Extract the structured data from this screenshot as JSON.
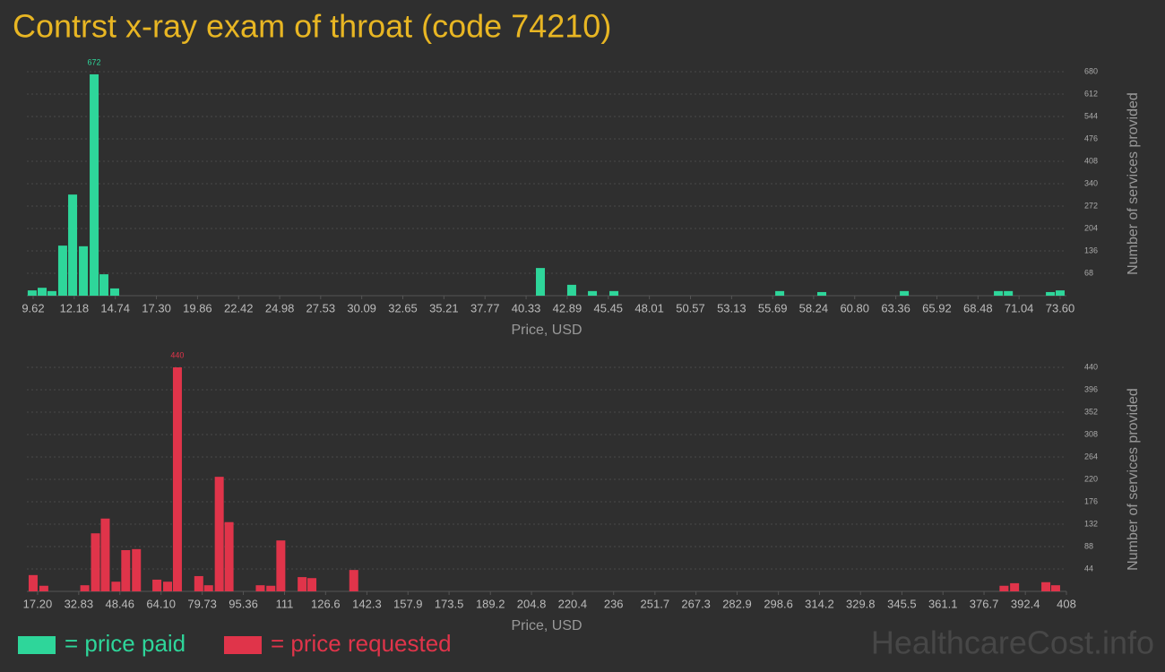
{
  "title": "Contrst x-ray exam of throat (code 74210)",
  "watermark": "HealthcareCost.info",
  "chart_data": [
    {
      "type": "bar",
      "xlabel": "Price, USD",
      "ylabel": "Number of services provided",
      "xlim": [
        9.23,
        73.99
      ],
      "ylim": [
        0,
        680
      ],
      "xticks": [
        9.62,
        12.18,
        14.74,
        {
          "value": 17.3,
          "label": "17.30"
        },
        19.86,
        22.42,
        24.98,
        27.53,
        30.09,
        32.65,
        35.21,
        37.77,
        40.33,
        42.89,
        45.45,
        48.01,
        50.57,
        53.13,
        55.69,
        58.24,
        {
          "value": 60.8,
          "label": "60.80"
        },
        63.36,
        65.92,
        68.48,
        71.04,
        {
          "value": 73.6,
          "label": "73.60"
        }
      ],
      "yticks": [
        68,
        136,
        204,
        272,
        340,
        408,
        476,
        544,
        612,
        680
      ],
      "grid": true,
      "series": [
        {
          "name": "= price paid",
          "color": "#2ed69a",
          "x": [
            9.56,
            10.18,
            10.79,
            11.46,
            12.08,
            12.75,
            13.42,
            14.03,
            14.7,
            41.22,
            43.17,
            44.46,
            45.8,
            56.13,
            58.75,
            63.89,
            69.75,
            70.37,
            72.99,
            73.6
          ],
          "values": [
            16,
            24,
            14,
            152,
            307,
            150,
            672,
            65,
            22,
            84,
            33,
            14,
            14,
            14,
            11,
            14,
            14,
            14,
            11,
            16
          ]
        }
      ]
    },
    {
      "type": "bar",
      "xlabel": "Price, USD",
      "ylabel": "Number of services provided",
      "xlim": [
        13.14,
        408
      ],
      "ylim": [
        0,
        440
      ],
      "xticks": [
        {
          "value": 17.2,
          "label": "17.20"
        },
        32.83,
        48.46,
        {
          "value": 64.1,
          "label": "64.10"
        },
        79.73,
        95.36,
        111,
        126.6,
        142.3,
        157.9,
        173.5,
        189.2,
        204.8,
        220.4,
        236,
        251.7,
        267.3,
        282.9,
        298.6,
        314.2,
        329.8,
        345.5,
        361.1,
        376.7,
        392.4,
        408
      ],
      "yticks": [
        44,
        88,
        132,
        176,
        220,
        264,
        308,
        352,
        396,
        440
      ],
      "grid": true,
      "series": [
        {
          "name": "= price requested",
          "color": "#e0344a",
          "x": [
            15.51,
            19.57,
            35.13,
            39.19,
            42.91,
            46.97,
            50.69,
            54.75,
            62.53,
            66.59,
            70.31,
            78.43,
            82.15,
            86.21,
            89.93,
            101.8,
            105.8,
            109.6,
            117.7,
            121.4,
            137.3,
            384.3,
            388.3,
            400.2,
            403.9
          ],
          "values": [
            32,
            11,
            12,
            114,
            143,
            19,
            81,
            83,
            23,
            19,
            440,
            30,
            12,
            225,
            136,
            12,
            11,
            100,
            28,
            26,
            42,
            11,
            16,
            18,
            12
          ]
        }
      ]
    }
  ]
}
